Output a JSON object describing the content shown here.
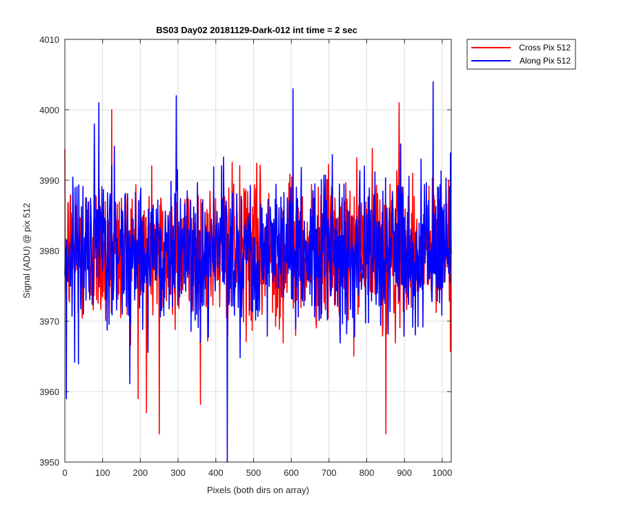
{
  "chart_data": {
    "type": "line",
    "title": "BS03 Day02 20181129-Dark-012 int time = 2 sec",
    "xlabel": "Pixels (both dirs on array)",
    "ylabel": "Signal (ADU) @ pix 512",
    "xlim": [
      0,
      1024
    ],
    "ylim": [
      3950,
      4010
    ],
    "xticks": [
      "0",
      "100",
      "200",
      "300",
      "400",
      "500",
      "600",
      "700",
      "800",
      "900",
      "1000"
    ],
    "yticks": [
      "3950",
      "3960",
      "3970",
      "3980",
      "3990",
      "4000",
      "4010"
    ],
    "grid": true,
    "legend_position": "outside-top-right",
    "series": [
      {
        "name": "Cross Pix 512",
        "color": "#ff0000",
        "samples": 1024,
        "approx_mean": 3980,
        "approx_range": [
          3954,
          4001
        ],
        "notable_points": [
          [
            124,
            4000
          ],
          [
            216,
            3957
          ],
          [
            250,
            3954
          ],
          [
            850,
            3954
          ],
          [
            885,
            4001
          ]
        ]
      },
      {
        "name": "Along Pix 512",
        "color": "#0000ff",
        "samples": 1024,
        "approx_mean": 3980,
        "approx_range": [
          3950,
          4004
        ],
        "notable_points": [
          [
            4,
            3959
          ],
          [
            90,
            4001
          ],
          [
            295,
            4002
          ],
          [
            430,
            3950
          ],
          [
            604,
            4003
          ],
          [
            975,
            4004
          ]
        ]
      }
    ]
  }
}
